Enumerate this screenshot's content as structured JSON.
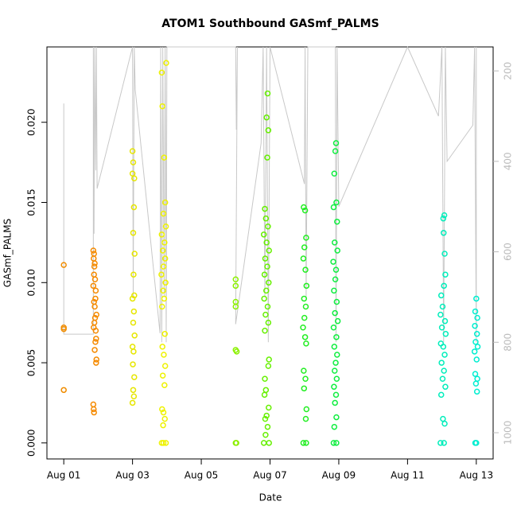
{
  "chart_data": {
    "type": "scatter",
    "title": "ATOM1 Southbound GASmf_PALMS",
    "xlabel": "Date",
    "ylabel": "GASmf_PALMS",
    "xlim": [
      0.51,
      13.49
    ],
    "xticks": [
      {
        "value": 1,
        "label": "Aug 01"
      },
      {
        "value": 3,
        "label": "Aug 03"
      },
      {
        "value": 5,
        "label": "Aug 05"
      },
      {
        "value": 7,
        "label": "Aug 07"
      },
      {
        "value": 9,
        "label": "Aug 09"
      },
      {
        "value": 11,
        "label": "Aug 11"
      },
      {
        "value": 13,
        "label": "Aug 13"
      }
    ],
    "ylim": [
      -0.001,
      0.0247
    ],
    "yticks": [
      {
        "value": 0,
        "label": "0.000"
      },
      {
        "value": 0.005,
        "label": "0.005"
      },
      {
        "value": 0.01,
        "label": "0.010"
      },
      {
        "value": 0.015,
        "label": "0.015"
      },
      {
        "value": 0.02,
        "label": "0.020"
      }
    ],
    "y2lim": [
      147,
      1058
    ],
    "y2_reversed": true,
    "y2ticks": [
      200,
      400,
      600,
      800,
      1000
    ],
    "series": [
      {
        "color": "#f08c00",
        "x": [
          1.0,
          1.0,
          1.0,
          1.0
        ],
        "values": [
          0.0111,
          0.0072,
          0.0071,
          0.0033
        ]
      },
      {
        "color": "#f58a00",
        "x": [
          1.86,
          1.88,
          1.87,
          1.9,
          1.89,
          1.88,
          1.91,
          1.86,
          1.93,
          1.92,
          1.88,
          1.9,
          1.95,
          1.91,
          1.89,
          1.87,
          1.93,
          1.94,
          1.92,
          1.9,
          1.95,
          1.94,
          1.86,
          1.87,
          1.88
        ],
        "values": [
          0.012,
          0.0118,
          0.0115,
          0.0112,
          0.011,
          0.0105,
          0.0102,
          0.0098,
          0.0095,
          0.009,
          0.0088,
          0.0085,
          0.008,
          0.0078,
          0.0075,
          0.0072,
          0.007,
          0.0065,
          0.0063,
          0.0058,
          0.0052,
          0.005,
          0.0024,
          0.0021,
          0.0019
        ]
      },
      {
        "color": "#e6e600",
        "x": [
          3.0,
          3.02,
          3.0,
          3.05,
          3.04,
          3.02,
          3.06,
          3.03,
          3.05,
          3.0,
          3.04,
          3.02,
          3.06,
          3.0,
          3.03,
          3.01,
          3.05,
          3.02,
          3.04,
          3.0
        ],
        "values": [
          0.0182,
          0.0175,
          0.0168,
          0.0165,
          0.0147,
          0.0131,
          0.0118,
          0.0105,
          0.0092,
          0.009,
          0.0082,
          0.0075,
          0.0067,
          0.006,
          0.0057,
          0.0049,
          0.0041,
          0.0033,
          0.0029,
          0.0025
        ]
      },
      {
        "color": "#eef200",
        "x": [
          3.98,
          3.85,
          3.87,
          3.92,
          3.95,
          3.9,
          3.97,
          3.85,
          3.93,
          3.88,
          3.95,
          3.9,
          3.84,
          3.96,
          3.89,
          3.92,
          3.86,
          3.94,
          3.87,
          3.91,
          3.95,
          3.88,
          3.93,
          3.86,
          3.9,
          3.94,
          3.89,
          3.85,
          3.9,
          3.97
        ],
        "values": [
          0.0237,
          0.0231,
          0.021,
          0.0178,
          0.015,
          0.0143,
          0.0135,
          0.013,
          0.0125,
          0.012,
          0.0115,
          0.011,
          0.0105,
          0.01,
          0.0095,
          0.009,
          0.0085,
          0.0068,
          0.006,
          0.0055,
          0.0048,
          0.0042,
          0.0036,
          0.0021,
          0.0019,
          0.0015,
          0.0011,
          0,
          0,
          0
        ]
      },
      {
        "color": "#8cf000",
        "x": [
          6.0,
          6.0,
          6.0,
          6.0,
          6.0,
          6.03,
          6.0,
          6.02
        ],
        "values": [
          0.0102,
          0.0098,
          0.0088,
          0.0085,
          0.0058,
          0.0057,
          0,
          0
        ]
      },
      {
        "color": "#66f000",
        "x": [
          6.93,
          6.9,
          6.95,
          6.92,
          6.85,
          6.88,
          6.94,
          6.82,
          6.9,
          6.97,
          6.86,
          6.92,
          6.84,
          6.96,
          6.89,
          6.83,
          6.93,
          6.87,
          6.95,
          6.85,
          6.97,
          6.95,
          6.85,
          6.88,
          6.84,
          6.96,
          6.9,
          6.86,
          6.93,
          6.87,
          6.82,
          6.97
        ],
        "values": [
          0.0218,
          0.0203,
          0.0195,
          0.0178,
          0.0146,
          0.014,
          0.0135,
          0.013,
          0.0125,
          0.012,
          0.0115,
          0.011,
          0.0105,
          0.01,
          0.0095,
          0.009,
          0.0085,
          0.008,
          0.0075,
          0.007,
          0.0052,
          0.0048,
          0.004,
          0.0033,
          0.003,
          0.0022,
          0.0017,
          0.0015,
          0.001,
          0.0005,
          0,
          0
        ]
      },
      {
        "color": "#22ee22",
        "x": [
          7.98,
          8.02,
          8.05,
          8.0,
          7.97,
          8.03,
          8.06,
          7.99,
          8.04,
          8.0,
          7.96,
          8.02,
          8.05,
          7.98,
          8.03,
          7.99,
          8.06,
          8.04,
          7.97,
          8.05
        ],
        "values": [
          0.0147,
          0.0145,
          0.0128,
          0.0122,
          0.0115,
          0.0108,
          0.0098,
          0.009,
          0.0085,
          0.0078,
          0.0072,
          0.0066,
          0.0062,
          0.0045,
          0.004,
          0.0034,
          0.0021,
          0.0015,
          0,
          0
        ]
      },
      {
        "color": "#10ee40",
        "x": [
          8.92,
          8.9,
          8.87,
          8.93,
          8.85,
          8.95,
          8.88,
          8.96,
          8.84,
          8.92,
          8.9,
          8.86,
          8.94,
          8.89,
          8.97,
          8.85,
          8.93,
          8.87,
          8.95,
          8.91,
          8.88,
          8.94,
          8.86,
          8.92,
          8.89,
          8.93,
          8.87,
          8.85,
          8.93
        ],
        "values": [
          0.0187,
          0.0182,
          0.0168,
          0.015,
          0.0147,
          0.0138,
          0.0125,
          0.012,
          0.0113,
          0.0108,
          0.0102,
          0.0095,
          0.0088,
          0.0081,
          0.0076,
          0.0072,
          0.0066,
          0.006,
          0.0055,
          0.005,
          0.0045,
          0.004,
          0.0035,
          0.003,
          0.0025,
          0.0016,
          0.001,
          0,
          0
        ]
      },
      {
        "color": "#00eebb",
        "x": [
          12.07,
          12.04,
          12.05,
          12.08,
          12.1,
          12.06,
          11.98,
          12.02,
          11.96,
          12.09,
          12.0,
          12.11,
          11.97,
          12.04,
          12.08,
          11.99,
          12.06,
          12.02,
          12.1,
          11.98,
          12.03,
          12.08,
          11.96,
          12.06
        ],
        "values": [
          0.0142,
          0.014,
          0.0131,
          0.0118,
          0.0105,
          0.0098,
          0.0092,
          0.0085,
          0.008,
          0.0076,
          0.0072,
          0.0068,
          0.0062,
          0.006,
          0.0055,
          0.005,
          0.0045,
          0.004,
          0.0035,
          0.003,
          0.0015,
          0.0012,
          0,
          0
        ]
      },
      {
        "color": "#00eed0",
        "x": [
          13.0,
          12.97,
          13.03,
          12.96,
          13.02,
          12.98,
          13.04,
          12.95,
          13.01,
          12.97,
          13.03,
          12.99,
          13.02,
          12.97,
          13.0
        ],
        "values": [
          0.009,
          0.0082,
          0.0078,
          0.0073,
          0.0068,
          0.0063,
          0.006,
          0.0057,
          0.0052,
          0.0043,
          0.004,
          0.0037,
          0.0032,
          0,
          0
        ]
      },
      {
        "type": "line",
        "axis": "y2",
        "color": "#c8c8c8",
        "x": [
          1.0,
          1.0,
          1.86,
          1.86,
          1.88,
          1.9,
          1.93,
          1.95,
          1.97,
          3.0,
          3.02,
          3.05,
          3.08,
          3.8,
          3.82,
          3.85,
          3.88,
          3.92,
          3.95,
          3.98,
          4.0,
          6.0,
          6.02,
          6.05,
          6.0,
          6.74,
          6.8,
          6.85,
          6.9,
          6.95,
          7.0,
          8.0,
          8.02,
          8.05,
          8.1,
          8.9,
          8.92,
          8.95,
          9.0,
          11.0,
          11.9,
          12.0,
          12.05,
          12.1,
          12.15,
          12.9,
          12.95,
          13.0,
          13.0
        ],
        "values": [
          272,
          782,
          782,
          147,
          560,
          147,
          420,
          147,
          460,
          147,
          700,
          147,
          242,
          780,
          147,
          800,
          147,
          700,
          147,
          800,
          147,
          147,
          330,
          147,
          760,
          360,
          147,
          700,
          147,
          800,
          147,
          450,
          147,
          700,
          147,
          147,
          800,
          147,
          500,
          147,
          300,
          147,
          800,
          147,
          400,
          320,
          147,
          800,
          147
        ]
      }
    ]
  }
}
